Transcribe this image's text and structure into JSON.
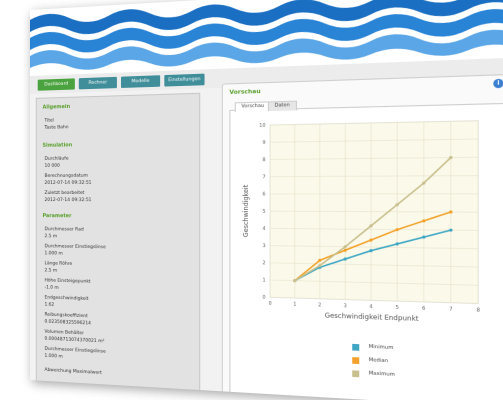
{
  "nav": {
    "tabs": [
      {
        "label": "Dashboard"
      },
      {
        "label": "Rechner"
      },
      {
        "label": "Modelle"
      },
      {
        "label": "Einstellungen"
      }
    ]
  },
  "sidebar": {
    "section1_title": "Allgemein",
    "section1_items": [
      "Titel",
      "Taste Bahn"
    ],
    "section2_title": "Simulation",
    "section2_items": [
      "Durchläufe",
      "10 000",
      "Berechnungsdatum",
      "2012-07-14 09:32:51",
      "Zuletzt bearbeitet",
      "2012-07-14 09:32:51"
    ],
    "section3_title": "Parameter",
    "section3_items": [
      "Durchmesser Rad",
      "2.5 m",
      "Durchmesser Einstiegslinse",
      "1.000 m",
      "Länge Röhre",
      "2.5 m",
      "Höhe Einsteigepunkt",
      "-1.0 m",
      "Endgeschwindigkeit",
      "1.62",
      "Reibungskoeffizient",
      "0.023508325596214",
      "Volumen Behälter",
      "0.00048713074370021 m²",
      "Durchmesser Einstiegslinse",
      "1.000 m",
      "Abweichung Maximalwert"
    ]
  },
  "main": {
    "title": "Vorschau",
    "info_icon": "i",
    "tabs": [
      {
        "label": "Vorschau"
      },
      {
        "label": "Daten"
      }
    ]
  },
  "chart_data": {
    "type": "line",
    "xlabel": "Geschwindigkeit Endpunkt",
    "ylabel": "Geschwindigkeit",
    "xlim": [
      0,
      8
    ],
    "ylim": [
      0,
      10
    ],
    "x_ticks": [
      "0",
      "1",
      "2",
      "3",
      "4",
      "5",
      "6",
      "7",
      "8"
    ],
    "y_ticks": [
      "0",
      "1",
      "2",
      "3",
      "4",
      "5",
      "6",
      "7",
      "8",
      "9",
      "10"
    ],
    "x": [
      1,
      2,
      3,
      4,
      5,
      6,
      7
    ],
    "series": [
      {
        "name": "Minimum",
        "color": "#3fa6c4",
        "values": [
          1.0,
          1.8,
          2.3,
          2.8,
          3.2,
          3.6,
          4.0
        ]
      },
      {
        "name": "Median",
        "color": "#f2a22a",
        "values": [
          1.0,
          2.2,
          2.8,
          3.4,
          4.0,
          4.5,
          5.0
        ]
      },
      {
        "name": "Maximum",
        "color": "#c8c08e",
        "values": [
          1.0,
          1.9,
          3.0,
          4.2,
          5.4,
          6.6,
          8.0
        ]
      }
    ],
    "grid": true,
    "legend_position": "bottom"
  }
}
